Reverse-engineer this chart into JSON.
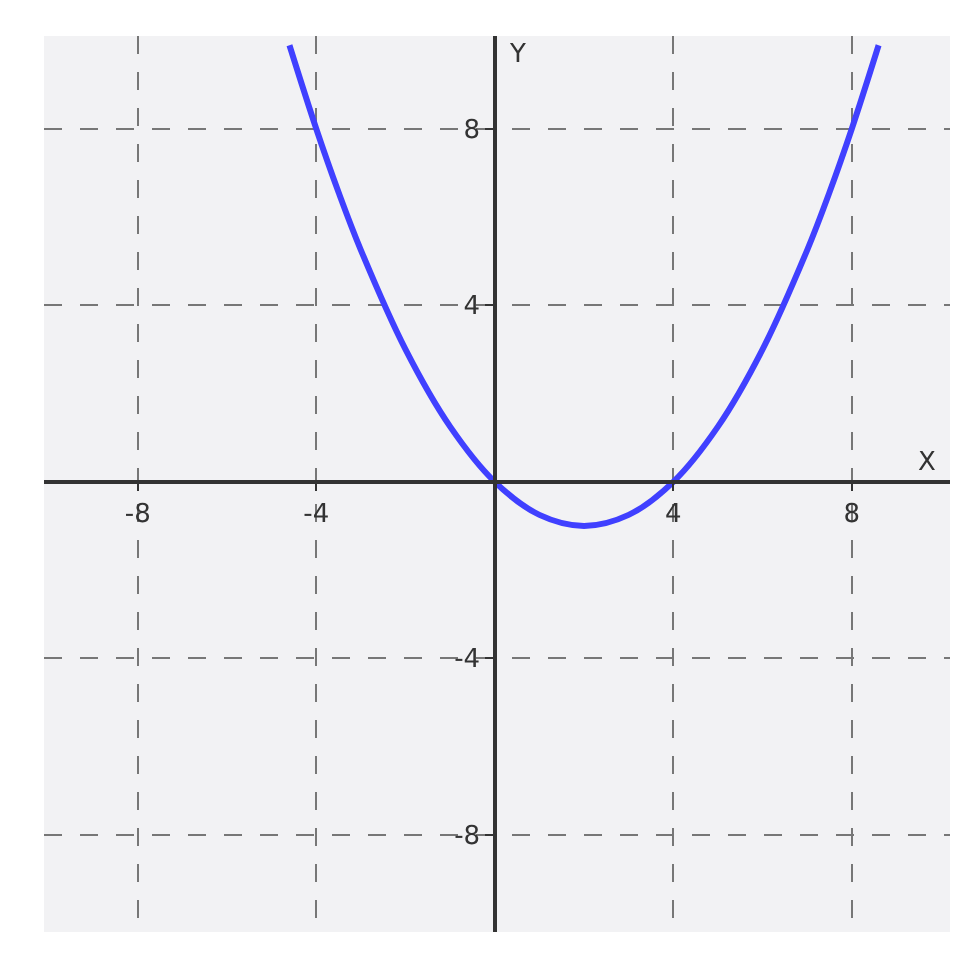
{
  "chart_data": {
    "type": "line",
    "xlabel": "X",
    "ylabel": "Y",
    "x": [
      -4.6,
      -4,
      -3.5,
      -3,
      -2,
      -1,
      0,
      1,
      2,
      3,
      4,
      5,
      6,
      7,
      7.5,
      8,
      8.6
    ],
    "series": [
      {
        "color": "#4040ff",
        "values": [
          9.89,
          8,
          6.56,
          5.25,
          3,
          1.25,
          0,
          -0.75,
          -1,
          -0.75,
          0,
          1.25,
          3,
          5.25,
          6.56,
          8,
          9.89
        ]
      }
    ],
    "xlim": [
      -10.1,
      10.2
    ],
    "ylim": [
      -10.2,
      10.1
    ],
    "xticks": [
      -8,
      -4,
      4,
      8
    ],
    "yticks": [
      -8,
      -4,
      4,
      8
    ],
    "grid": true,
    "marker": "none",
    "line_style": "solid"
  }
}
